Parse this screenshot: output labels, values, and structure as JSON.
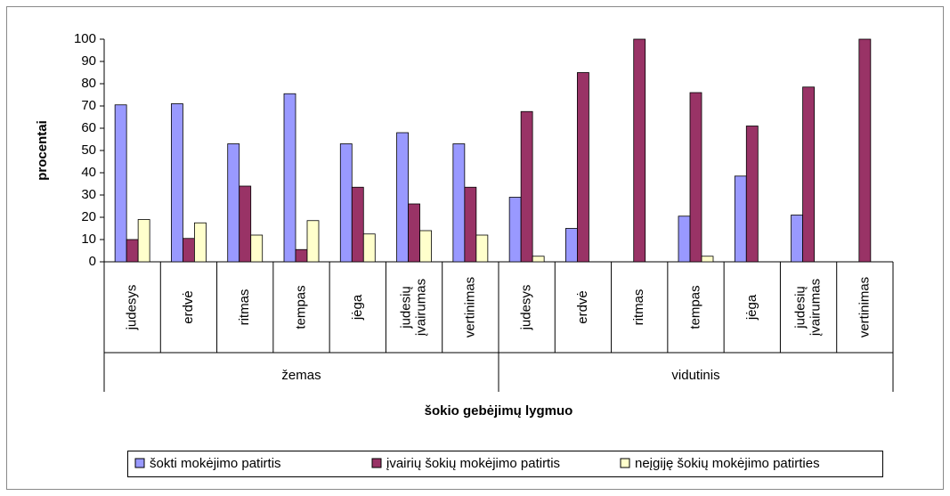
{
  "chart_data": {
    "type": "bar",
    "y_label": "procentai",
    "x_label": "šokio gebėjimų lygmuo",
    "categories": [
      "judesys",
      "erdvė",
      "ritmas",
      "tempas",
      "jėga",
      "judesių įvairumas",
      "vertinimas",
      "judesys",
      "erdvė",
      "ritmas",
      "tempas",
      "jėga",
      "judesių įvairumas",
      "vertinimas"
    ],
    "group_labels": [
      "žemas",
      "vidutinis"
    ],
    "series": [
      {
        "name": "šokti mokėjimo patirtis",
        "color": "#9999ff",
        "values": [
          70.5,
          71,
          53,
          75.5,
          53,
          58,
          53,
          29,
          15,
          0,
          20.5,
          38.5,
          21,
          0
        ]
      },
      {
        "name": "įvairių šokių mokėjimo patirtis",
        "color": "#993366",
        "values": [
          10,
          10.5,
          34,
          5.5,
          33.5,
          26,
          33.5,
          67.5,
          85,
          100,
          76,
          61,
          78.5,
          100
        ]
      },
      {
        "name": "neįgiję šokių mokėjimo patirties",
        "color": "#ffffcc",
        "values": [
          19,
          17.5,
          12,
          18.5,
          12.5,
          14,
          12,
          2.5,
          0,
          0,
          2.5,
          0,
          0,
          0
        ]
      }
    ],
    "ylim": [
      0,
      100
    ],
    "yticks": [
      0,
      10,
      20,
      30,
      40,
      50,
      60,
      70,
      80,
      90,
      100
    ],
    "grid": false
  }
}
